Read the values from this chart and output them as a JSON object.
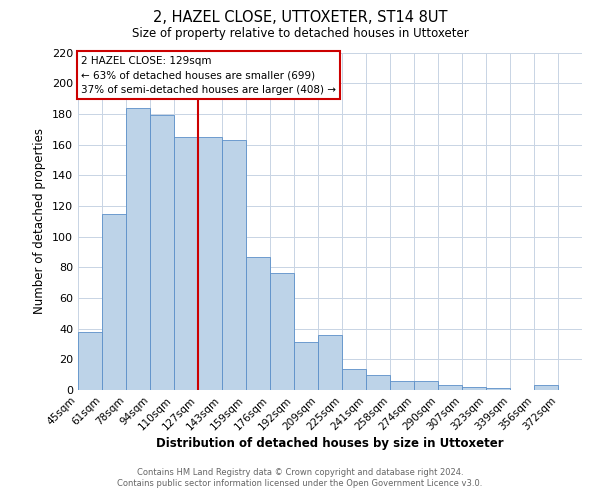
{
  "title": "2, HAZEL CLOSE, UTTOXETER, ST14 8UT",
  "subtitle": "Size of property relative to detached houses in Uttoxeter",
  "xlabel": "Distribution of detached houses by size in Uttoxeter",
  "ylabel": "Number of detached properties",
  "bar_labels": [
    "45sqm",
    "61sqm",
    "78sqm",
    "94sqm",
    "110sqm",
    "127sqm",
    "143sqm",
    "159sqm",
    "176sqm",
    "192sqm",
    "209sqm",
    "225sqm",
    "241sqm",
    "258sqm",
    "274sqm",
    "290sqm",
    "307sqm",
    "323sqm",
    "339sqm",
    "356sqm",
    "372sqm"
  ],
  "bar_values": [
    38,
    115,
    184,
    179,
    165,
    165,
    163,
    87,
    76,
    31,
    36,
    14,
    10,
    6,
    6,
    3,
    2,
    1,
    0,
    3,
    0
  ],
  "bar_color": "#bdd3e8",
  "bar_edge_color": "#5b8fc9",
  "vline_x": 5,
  "vline_color": "#cc0000",
  "ylim": [
    0,
    220
  ],
  "yticks": [
    0,
    20,
    40,
    60,
    80,
    100,
    120,
    140,
    160,
    180,
    200,
    220
  ],
  "annotation_title": "2 HAZEL CLOSE: 129sqm",
  "annotation_line1": "← 63% of detached houses are smaller (699)",
  "annotation_line2": "37% of semi-detached houses are larger (408) →",
  "annotation_box_color": "#ffffff",
  "annotation_box_edge": "#cc0000",
  "footer1": "Contains HM Land Registry data © Crown copyright and database right 2024.",
  "footer2": "Contains public sector information licensed under the Open Government Licence v3.0.",
  "background_color": "#ffffff",
  "grid_color": "#c8d4e4"
}
